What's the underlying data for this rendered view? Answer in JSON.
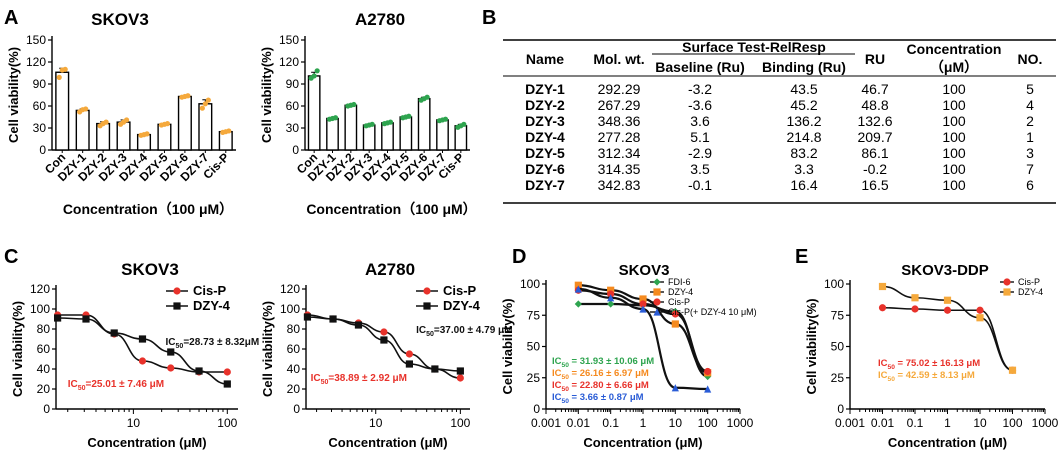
{
  "panels": {
    "A": "A",
    "B": "B",
    "C": "C",
    "D": "D",
    "E": "E"
  },
  "chart_data": [
    {
      "id": "A1",
      "type": "bar",
      "title": "SKOV3",
      "categories": [
        "Con",
        "DZY-1",
        "DZY-2",
        "DZY-3",
        "DZY-4",
        "DZY-5",
        "DZY-6",
        "DZY-7",
        "Cis-P"
      ],
      "values": [
        106,
        54,
        36,
        38,
        21,
        35,
        73,
        63,
        25
      ],
      "points": [
        [
          99,
          109,
          110
        ],
        [
          52,
          55,
          56
        ],
        [
          33,
          36,
          38
        ],
        [
          35,
          38,
          41
        ],
        [
          20,
          21,
          22
        ],
        [
          34,
          35,
          36
        ],
        [
          72,
          73,
          74
        ],
        [
          57,
          63,
          68
        ],
        [
          24,
          25,
          26
        ]
      ],
      "point_color": "#f5a93c",
      "ylabel": "Cell viability(%)",
      "xlabel": "Concentration（100 μM）",
      "ylim": [
        0,
        150
      ],
      "yticks": [
        0,
        30,
        60,
        90,
        120,
        150
      ]
    },
    {
      "id": "A2",
      "type": "bar",
      "title": "A2780",
      "categories": [
        "Con",
        "DZY-1",
        "DZY-2",
        "DZY-3",
        "DZY-4",
        "DZY-5",
        "DZY-6",
        "DZY-7",
        "Cis-P"
      ],
      "values": [
        101,
        43,
        61,
        34,
        37,
        45,
        70,
        41,
        33
      ],
      "points": [
        [
          98,
          101,
          108
        ],
        [
          42,
          43,
          44
        ],
        [
          60,
          61,
          62
        ],
        [
          33,
          34,
          35
        ],
        [
          36,
          37,
          38
        ],
        [
          44,
          45,
          46
        ],
        [
          68,
          70,
          72
        ],
        [
          40,
          41,
          42
        ],
        [
          31,
          33,
          35
        ]
      ],
      "point_color": "#2ea44f",
      "ylabel": "Cell viability(%)",
      "xlabel": "Concentration（100 μM）",
      "ylim": [
        0,
        150
      ],
      "yticks": [
        0,
        30,
        60,
        90,
        120,
        150
      ]
    },
    {
      "id": "C1",
      "type": "scatter",
      "title": "SKOV3",
      "xscale": "log",
      "xlim": [
        1.5,
        130
      ],
      "xticks": [
        10,
        100
      ],
      "ylim": [
        0,
        120
      ],
      "yticks": [
        0,
        20,
        40,
        60,
        80,
        100,
        120
      ],
      "ylabel": "Cell viability(%)",
      "xlabel": "Concentration (μM)",
      "series": [
        {
          "name": "Cis-P",
          "color": "#e8322b",
          "marker": "circle",
          "x": [
            1.56,
            3.13,
            6.25,
            12.5,
            25,
            50,
            100
          ],
          "y": [
            94,
            94,
            75,
            48,
            41,
            37,
            37
          ]
        },
        {
          "name": "DZY-4",
          "color": "#111111",
          "marker": "square",
          "x": [
            1.56,
            3.13,
            6.25,
            12.5,
            25,
            50,
            100
          ],
          "y": [
            91,
            90,
            76,
            70,
            57,
            38,
            25
          ]
        }
      ],
      "annotations": [
        {
          "text": "IC",
          "sub": "50",
          "rest": "=28.73 ± 8.32μM",
          "color": "#111111",
          "x": 22,
          "y": 64
        },
        {
          "text": "IC",
          "sub": "50",
          "rest": "=25.01 ± 7.46 μM",
          "color": "#e8322b",
          "x": 2.0,
          "y": 22
        }
      ]
    },
    {
      "id": "C2",
      "type": "scatter",
      "title": "A2780",
      "xscale": "log",
      "xlim": [
        1.5,
        130
      ],
      "xticks": [
        10,
        100
      ],
      "ylim": [
        0,
        120
      ],
      "yticks": [
        0,
        20,
        40,
        60,
        80,
        100,
        120
      ],
      "ylabel": "Cell viability(%)",
      "xlabel": "Concentration (μM)",
      "series": [
        {
          "name": "Cis-P",
          "color": "#e8322b",
          "marker": "circle",
          "x": [
            1.56,
            3.13,
            6.25,
            12.5,
            25,
            50,
            100
          ],
          "y": [
            94,
            90,
            86,
            77,
            55,
            40,
            31
          ]
        },
        {
          "name": "DZY-4",
          "color": "#111111",
          "marker": "square",
          "x": [
            1.56,
            3.13,
            6.25,
            12.5,
            25,
            50,
            100
          ],
          "y": [
            92,
            90,
            84,
            69,
            45,
            40,
            38
          ]
        }
      ],
      "annotations": [
        {
          "text": "IC",
          "sub": "50",
          "rest": "=37.00 ± 4.79 μM",
          "color": "#111111",
          "x": 30,
          "y": 76
        },
        {
          "text": "IC",
          "sub": "50",
          "rest": "=38.89 ± 2.92 μM",
          "color": "#e8322b",
          "x": 1.7,
          "y": 28
        }
      ]
    },
    {
      "id": "D",
      "type": "scatter",
      "title": "SKOV3",
      "xscale": "log",
      "xlim": [
        0.001,
        1000
      ],
      "xticks": [
        0.001,
        0.01,
        0.1,
        1,
        10,
        100,
        1000
      ],
      "xticklabels": [
        "0.001",
        "0.01",
        "0.1",
        "1",
        "10",
        "100",
        "1000"
      ],
      "ylim": [
        0,
        100
      ],
      "yticks": [
        0,
        25,
        50,
        75,
        100
      ],
      "ylabel": "Cell viability(%)",
      "xlabel": "Concentration (μM)",
      "series": [
        {
          "name": "FDI-6",
          "color": "#2ea44f",
          "marker": "diamond",
          "x": [
            0.01,
            0.1,
            1,
            10,
            100
          ],
          "y": [
            84,
            84,
            83,
            78,
            26
          ]
        },
        {
          "name": "DZY-4",
          "color": "#f58a1f",
          "marker": "square",
          "x": [
            0.01,
            0.1,
            1,
            10,
            100
          ],
          "y": [
            99,
            95,
            88,
            68,
            29
          ]
        },
        {
          "name": "Cis-P",
          "color": "#e8322b",
          "marker": "circle",
          "x": [
            0.01,
            0.1,
            1,
            10,
            100
          ],
          "y": [
            95,
            92,
            84,
            76,
            30
          ]
        },
        {
          "name": "Cis-P(+ DZY-4 10 μM)",
          "color": "#2a5cd6",
          "marker": "triangle",
          "x": [
            0.01,
            0.1,
            1,
            10,
            100
          ],
          "y": [
            96,
            89,
            80,
            17,
            16
          ]
        }
      ],
      "annotations": [
        {
          "text": "IC",
          "sub": "50",
          "rest": " = 31.93 ± 10.06 μM",
          "color": "#2ea44f"
        },
        {
          "text": "IC",
          "sub": "50",
          "rest": " = 26.16 ± 6.97 μM",
          "color": "#f58a1f"
        },
        {
          "text": "IC",
          "sub": "50",
          "rest": " = 22.80 ± 6.66 μM",
          "color": "#e8322b"
        },
        {
          "text": "IC",
          "sub": "50",
          "rest": " = 3.66 ± 0.87 μM",
          "color": "#2a5cd6"
        }
      ]
    },
    {
      "id": "E",
      "type": "scatter",
      "title": "SKOV3-DDP",
      "xscale": "log",
      "xlim": [
        0.001,
        1000
      ],
      "xticks": [
        0.001,
        0.01,
        0.1,
        1,
        10,
        100,
        1000
      ],
      "xticklabels": [
        "0.001",
        "0.01",
        "0.1",
        "1",
        "10",
        "100",
        "1000"
      ],
      "ylim": [
        0,
        100
      ],
      "yticks": [
        0,
        25,
        50,
        75,
        100
      ],
      "ylabel": "Cell viability(%)",
      "xlabel": "Concentration (μM)",
      "series": [
        {
          "name": "Cis-P",
          "color": "#e8322b",
          "marker": "circle",
          "x": [
            0.01,
            0.1,
            1,
            10,
            100
          ],
          "y": [
            81,
            80,
            79,
            79,
            31
          ]
        },
        {
          "name": "DZY-4",
          "color": "#f5a93c",
          "marker": "square",
          "x": [
            0.01,
            0.1,
            1,
            10,
            100
          ],
          "y": [
            98,
            89,
            87,
            73,
            31
          ]
        }
      ],
      "annotations": [
        {
          "text": "IC",
          "sub": "50",
          "rest": " = 75.02 ± 16.13 μM",
          "color": "#e8322b"
        },
        {
          "text": "IC",
          "sub": "50",
          "rest": " = 42.59 ± 8.13 μM",
          "color": "#f5a93c"
        }
      ]
    }
  ],
  "table": {
    "headers": {
      "name": "Name",
      "mw": "Mol. wt.",
      "surface": "Surface Test-RelResp",
      "baseline": "Baseline (Ru)",
      "binding": "Binding (Ru)",
      "ru": "RU",
      "conc1": "Concentration",
      "conc2": "（μM）",
      "no": "NO."
    },
    "rows": [
      [
        "DZY-1",
        "292.29",
        "-3.2",
        "43.5",
        "46.7",
        "100",
        "5"
      ],
      [
        "DZY-2",
        "267.29",
        "-3.6",
        "45.2",
        "48.8",
        "100",
        "4"
      ],
      [
        "DZY-3",
        "348.36",
        "3.6",
        "136.2",
        "132.6",
        "100",
        "2"
      ],
      [
        "DZY-4",
        "277.28",
        "5.1",
        "214.8",
        "209.7",
        "100",
        "1"
      ],
      [
        "DZY-5",
        "312.34",
        "-2.9",
        "83.2",
        "86.1",
        "100",
        "3"
      ],
      [
        "DZY-6",
        "314.35",
        "3.5",
        "3.3",
        "-0.2",
        "100",
        "7"
      ],
      [
        "DZY-7",
        "342.83",
        "-0.1",
        "16.4",
        "16.5",
        "100",
        "6"
      ]
    ]
  }
}
